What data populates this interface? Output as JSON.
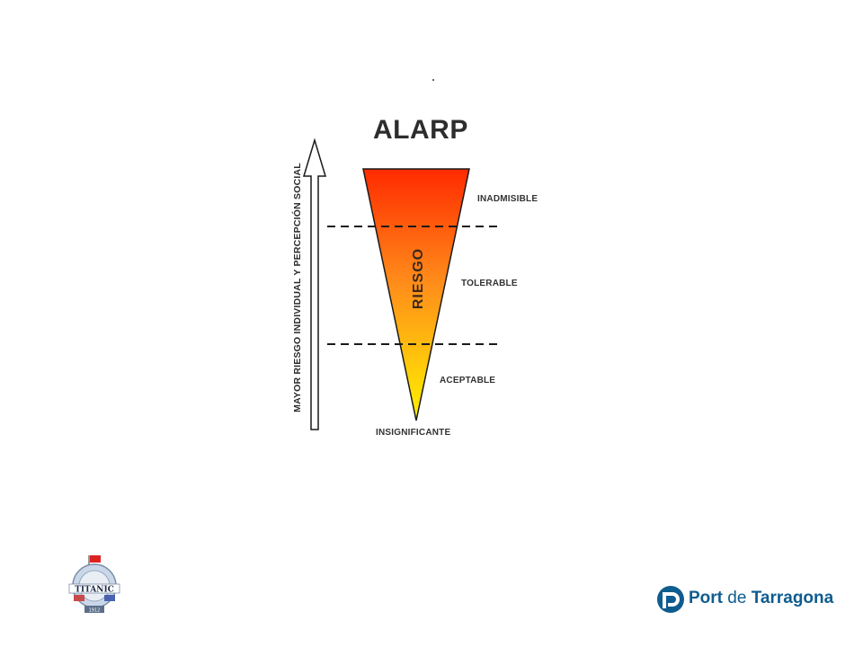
{
  "slide": {
    "title": "ALARP",
    "vertical_axis_label": "MAYOR RIESGO INDIVIDUAL  Y PERCEPCIÓN SOCIAL",
    "triangle_label": "RIESGO",
    "zones": [
      {
        "id": "inadmisible",
        "label": "INADMISIBLE"
      },
      {
        "id": "tolerable",
        "label": "TOLERABLE"
      },
      {
        "id": "aceptable",
        "label": "ACEPTABLE"
      }
    ],
    "bottom_label": "INSIGNIFICANTE",
    "gradient_colors": {
      "top": "#ff2a00",
      "middle": "#ff8c1a",
      "bottom": "#fff200"
    },
    "line_color": "#1a1a1a"
  },
  "logos": {
    "left": {
      "name": "titanic-emblem",
      "text": "TITANIC",
      "year": "1912"
    },
    "right": {
      "name": "port-de-tarragona",
      "word1": "Port",
      "word2": " de ",
      "word3": "Tarragona",
      "color": "#0f5c8f"
    }
  }
}
